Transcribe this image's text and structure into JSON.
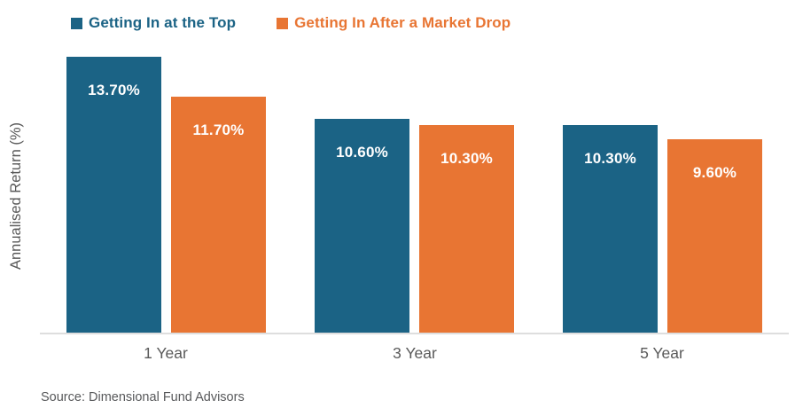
{
  "chart_data": {
    "type": "bar",
    "title": "",
    "ylabel": "Annualised Return (%)",
    "xlabel": "",
    "categories": [
      "1 Year",
      "3 Year",
      "5 Year"
    ],
    "series": [
      {
        "name": "Getting In at the Top",
        "color": "#1B6385",
        "values": [
          13.7,
          10.6,
          10.3
        ],
        "labels": [
          "13.70%",
          "10.60%",
          "10.30%"
        ]
      },
      {
        "name": "Getting In After a Market Drop",
        "color": "#E87533",
        "values": [
          11.7,
          10.3,
          9.6
        ],
        "labels": [
          "11.70%",
          "10.30%",
          "9.60%"
        ]
      }
    ],
    "ylim": [
      0,
      14
    ],
    "grid": false,
    "legend_position": "top",
    "data_labels": "inside-top-white",
    "axis_line_color": "#DEDEDE",
    "source": "Source: Dimensional Fund Advisors"
  }
}
